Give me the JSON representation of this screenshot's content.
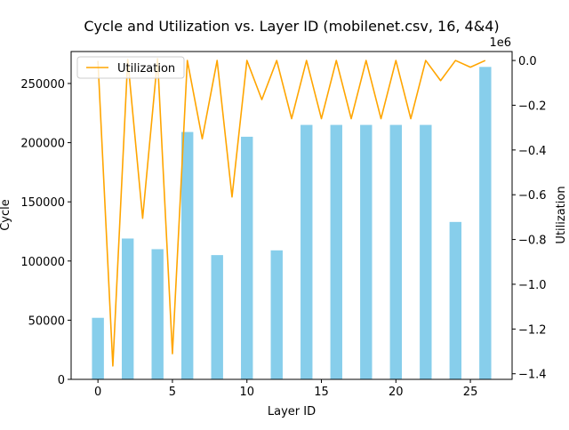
{
  "chart_data": {
    "type": "bar",
    "title": "Cycle and Utilization vs. Layer ID (mobilenet.csv, 16, 4&4)",
    "xlabel": "Layer ID",
    "ylabel": "Cycle",
    "y2label": "Utilization",
    "y2_offset_label": "1e6",
    "xlim": [
      -1.8,
      27.8
    ],
    "ylim": [
      0,
      277000
    ],
    "y2lim": [
      -1425000,
      40000
    ],
    "x_ticks": [
      0,
      5,
      10,
      15,
      20,
      25
    ],
    "y_ticks": [
      0,
      50000,
      100000,
      150000,
      200000,
      250000
    ],
    "y2_ticks": [
      0,
      -0.2,
      -0.4,
      -0.6,
      -0.8,
      -1.0,
      -1.2,
      -1.4
    ],
    "y2_tick_scale": 1000000,
    "grid": false,
    "legend_position": "top-left",
    "colors": {
      "bars": "#87ceeb",
      "line": "#ffa500"
    },
    "bar_series": {
      "name": "Cycle",
      "x": [
        0,
        2,
        4,
        6,
        8,
        10,
        12,
        14,
        16,
        18,
        20,
        22,
        24,
        26
      ],
      "values": [
        52000,
        119000,
        110000,
        209000,
        105000,
        205000,
        109000,
        215000,
        215000,
        215000,
        215000,
        215000,
        133000,
        264000
      ]
    },
    "line_series": {
      "name": "Utilization",
      "x": [
        0,
        1,
        2,
        3,
        4,
        5,
        6,
        7,
        8,
        9,
        10,
        11,
        12,
        13,
        14,
        15,
        16,
        17,
        18,
        19,
        20,
        21,
        22,
        23,
        24,
        25,
        26
      ],
      "values": [
        -2000,
        -1365000,
        5000,
        -705000,
        8000,
        -1310000,
        0,
        -350000,
        0,
        -610000,
        0,
        -175000,
        0,
        -260000,
        0,
        -260000,
        0,
        -260000,
        0,
        -260000,
        0,
        -260000,
        0,
        -90000,
        0,
        -30000,
        0
      ]
    }
  }
}
